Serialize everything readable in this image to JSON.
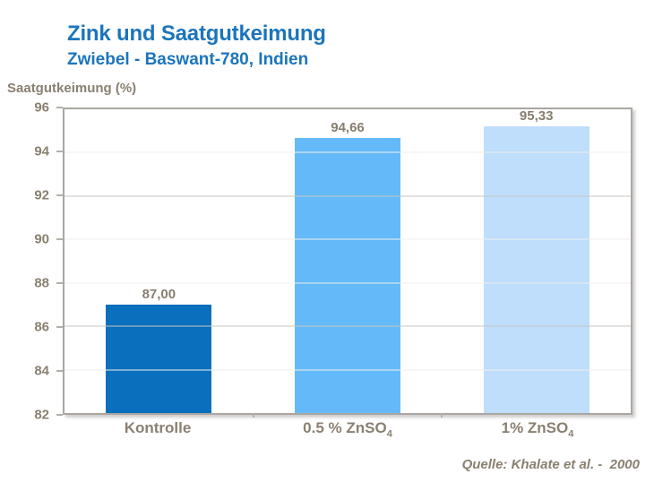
{
  "chart_data": {
    "type": "bar",
    "title": "Zink und Saatgutkeimung",
    "subtitle": "Zwiebel - Baswant-780, Indien",
    "ylabel": "Saatgutkeimung (%)",
    "xlabel": "",
    "categories": [
      {
        "label": "Kontrolle",
        "sub": ""
      },
      {
        "label": "0.5 % ZnSO",
        "sub": "4"
      },
      {
        "label": "1% ZnSO",
        "sub": "4"
      }
    ],
    "values": [
      87.0,
      94.66,
      95.33
    ],
    "value_labels": [
      "87,00",
      "94,66",
      "95,33"
    ],
    "bar_colors": [
      "#0a6fbd",
      "#64baf8",
      "#bedefb"
    ],
    "ylim": [
      82,
      96
    ],
    "yticks": [
      96,
      94,
      92,
      90,
      88,
      86,
      84,
      82
    ],
    "emphasized_gridlines": [
      92,
      86
    ],
    "grid": true,
    "legend": "none",
    "source": "Quelle: Khalate et al. -  2000"
  },
  "colors": {
    "title_text": "#1c75bb",
    "axis_text": "#8a8070",
    "value_label_text": "#877d6d",
    "plot_border": "#aaa7a2",
    "gridline_minor": "#f0eeec",
    "gridline_major": "#c8c5c0",
    "background": "#ffffff"
  }
}
